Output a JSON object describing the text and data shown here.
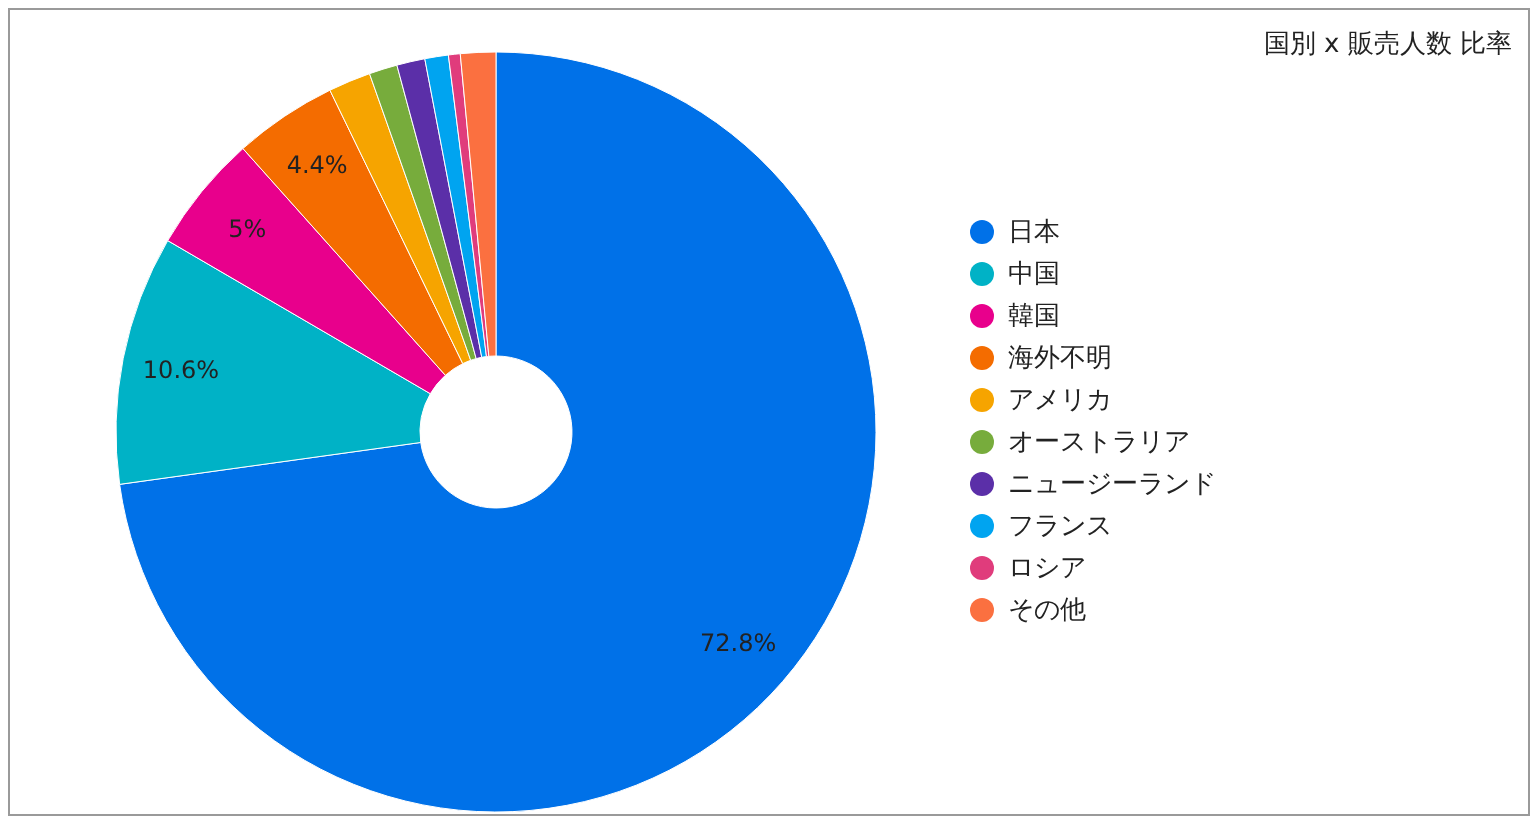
{
  "chart_data": {
    "type": "donut",
    "title": "国別 x 販売人数 比率",
    "categories": [
      "日本",
      "中国",
      "韓国",
      "海外不明",
      "アメリカ",
      "オーストラリア",
      "ニュージーランド",
      "フランス",
      "ロシア",
      "その他"
    ],
    "values": [
      72.8,
      10.6,
      5,
      4.4,
      1.8,
      1.2,
      1.2,
      1.0,
      0.5,
      1.5
    ],
    "value_labels": [
      "72.8%",
      "10.6%",
      "5%",
      "4.4%",
      null,
      null,
      null,
      null,
      null,
      null
    ],
    "colors": [
      "#0071e8",
      "#00b2c6",
      "#e8008c",
      "#f46c00",
      "#f6a400",
      "#77ac3c",
      "#5b2fa8",
      "#00a4f0",
      "#e03c7c",
      "#fb7040"
    ],
    "legend": "right"
  }
}
